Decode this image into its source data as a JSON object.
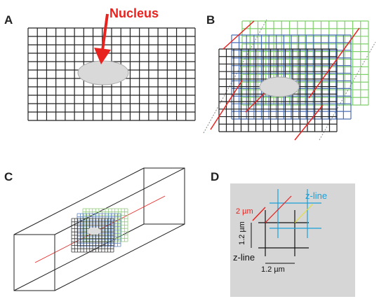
{
  "panels": [
    {
      "label": "A",
      "annotation": "Nucleus"
    },
    {
      "label": "B"
    },
    {
      "label": "C"
    },
    {
      "label": "D",
      "z_line_top": "z-line",
      "z_line_bottom": "z-line",
      "diagonal": "2 µm",
      "vertical": "1.2 µm",
      "horizontal": "1.2 µm"
    }
  ]
}
